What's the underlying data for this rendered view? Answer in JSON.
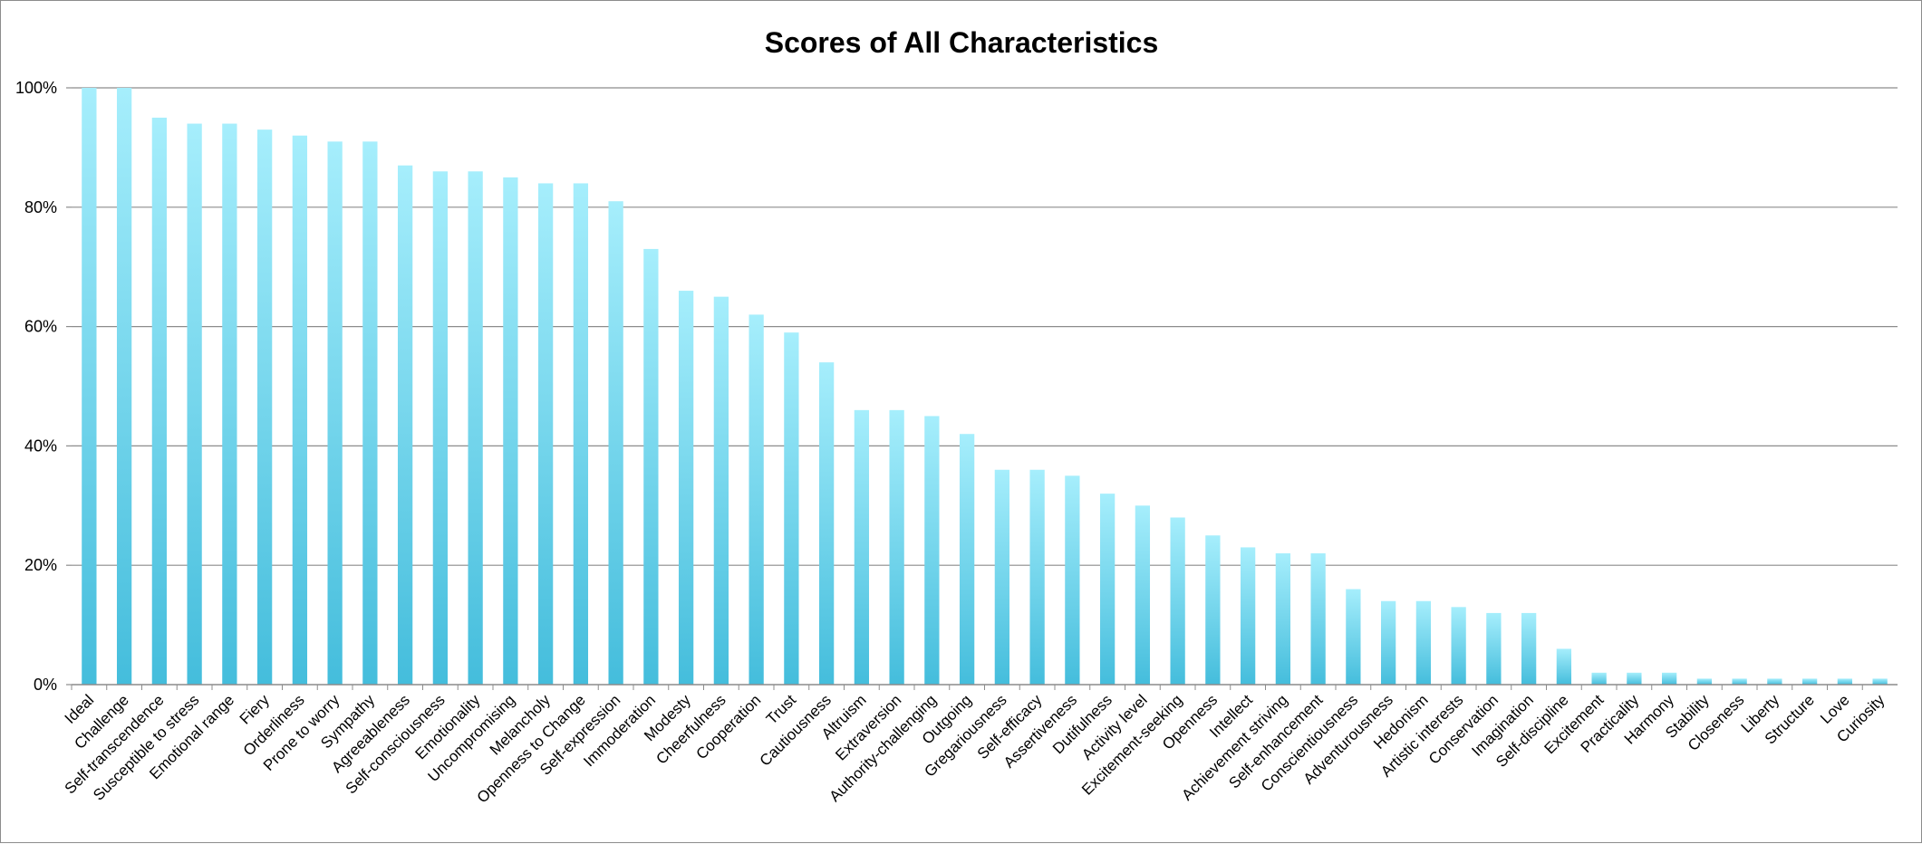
{
  "chart_data": {
    "type": "bar",
    "title": "Scores of All Characteristics",
    "xlabel": "",
    "ylabel": "",
    "ylim": [
      0,
      100
    ],
    "yticks": [
      0,
      20,
      40,
      60,
      80,
      100
    ],
    "ytick_labels": [
      "0%",
      "20%",
      "40%",
      "60%",
      "80%",
      "100%"
    ],
    "grid": true,
    "legend": "none",
    "colors": {
      "bar_top": "#a6eefc",
      "bar_bottom": "#44bddc",
      "grid": "#8c8c8c"
    },
    "categories": [
      "Ideal",
      "Challenge",
      "Self-transcendence",
      "Susceptible to stress",
      "Emotional range",
      "Fiery",
      "Orderliness",
      "Prone to worry",
      "Sympathy",
      "Agreeableness",
      "Self-consciousness",
      "Emotionality",
      "Uncompromising",
      "Melancholy",
      "Openness to Change",
      "Self-expression",
      "Immoderation",
      "Modesty",
      "Cheerfulness",
      "Cooperation",
      "Trust",
      "Cautiousness",
      "Altruism",
      "Extraversion",
      "Authority-challenging",
      "Outgoing",
      "Gregariousness",
      "Self-efficacy",
      "Assertiveness",
      "Dutifulness",
      "Activity level",
      "Excitement-seeking",
      "Openness",
      "Intellect",
      "Achievement striving",
      "Self-enhancement",
      "Conscientiousness",
      "Adventurousness",
      "Hedonism",
      "Artistic interests",
      "Conservation",
      "Imagination",
      "Self-discipline",
      "Excitement",
      "Practicality",
      "Harmony",
      "Stability",
      "Closeness",
      "Liberty",
      "Structure",
      "Love",
      "Curiosity"
    ],
    "values": [
      100,
      100,
      95,
      94,
      94,
      93,
      92,
      91,
      91,
      87,
      86,
      86,
      85,
      84,
      84,
      81,
      73,
      66,
      65,
      62,
      59,
      54,
      46,
      46,
      45,
      42,
      36,
      36,
      35,
      32,
      30,
      28,
      25,
      23,
      22,
      22,
      16,
      14,
      14,
      13,
      12,
      12,
      6,
      2,
      2,
      2,
      1,
      1,
      1,
      1,
      1,
      1
    ]
  }
}
